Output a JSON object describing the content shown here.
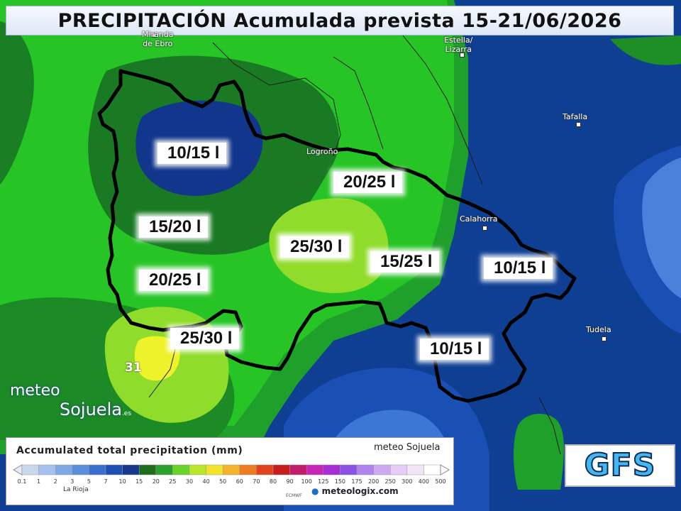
{
  "title": "PRECIPITACIÓN Acumulada prevista 15-21/06/2026",
  "range_labels": [
    {
      "id": "label-north-pocket",
      "text": "10/15 l"
    },
    {
      "id": "label-logrono-east",
      "text": "20/25 l"
    },
    {
      "id": "label-west-center",
      "text": "15/20 l"
    },
    {
      "id": "label-center",
      "text": "25/30 l"
    },
    {
      "id": "label-ebro-middle",
      "text": "15/25 l"
    },
    {
      "id": "label-east",
      "text": "10/15 l"
    },
    {
      "id": "label-southwest",
      "text": "20/25 l"
    },
    {
      "id": "label-south-cameros",
      "text": "25/30 l"
    },
    {
      "id": "label-southeast",
      "text": "10/15 l"
    }
  ],
  "cities": [
    {
      "id": "miranda",
      "name": "Miranda\nde Ebro"
    },
    {
      "id": "estella",
      "name": "Estella/\nLizarra"
    },
    {
      "id": "tafalla",
      "name": "Tafalla"
    },
    {
      "id": "logrono",
      "name": "Logroño"
    },
    {
      "id": "calahorra",
      "name": "Calahorra"
    },
    {
      "id": "tudela",
      "name": "Tudela"
    }
  ],
  "max_value": "31",
  "legend": {
    "title": "Accumulated total precipitation (mm)",
    "ticks": [
      "0.1",
      "1",
      "2",
      "3",
      "5",
      "7",
      "10",
      "15",
      "20",
      "25",
      "30",
      "40",
      "50",
      "60",
      "70",
      "80",
      "90",
      "100",
      "125",
      "150",
      "175",
      "200",
      "250",
      "300",
      "400",
      "500"
    ],
    "colors": [
      "#e6ecf6",
      "#c8d6ee",
      "#a6c2ec",
      "#7fa9e6",
      "#5b8fdc",
      "#3a6fd0",
      "#1e4fb5",
      "#17388c",
      "#1e6e1e",
      "#2ba12b",
      "#6bd22b",
      "#b8e62a",
      "#f0e52a",
      "#f4b42a",
      "#ee7d22",
      "#e3421e",
      "#c81d1d",
      "#c21d6b",
      "#c826b4",
      "#a62ed4",
      "#8a53e6",
      "#b083ee",
      "#cfa8f2",
      "#e6ccf6",
      "#f2e4f8",
      "#ffffff"
    ],
    "region": "La Rioja",
    "credit": "meteologix.com",
    "ecmwf": "ECMWF",
    "brand": "meteo Sojuela"
  },
  "brand": {
    "word1": "meteo",
    "word2": "Sojuela",
    "suffix": ".es"
  },
  "model": "GFS"
}
